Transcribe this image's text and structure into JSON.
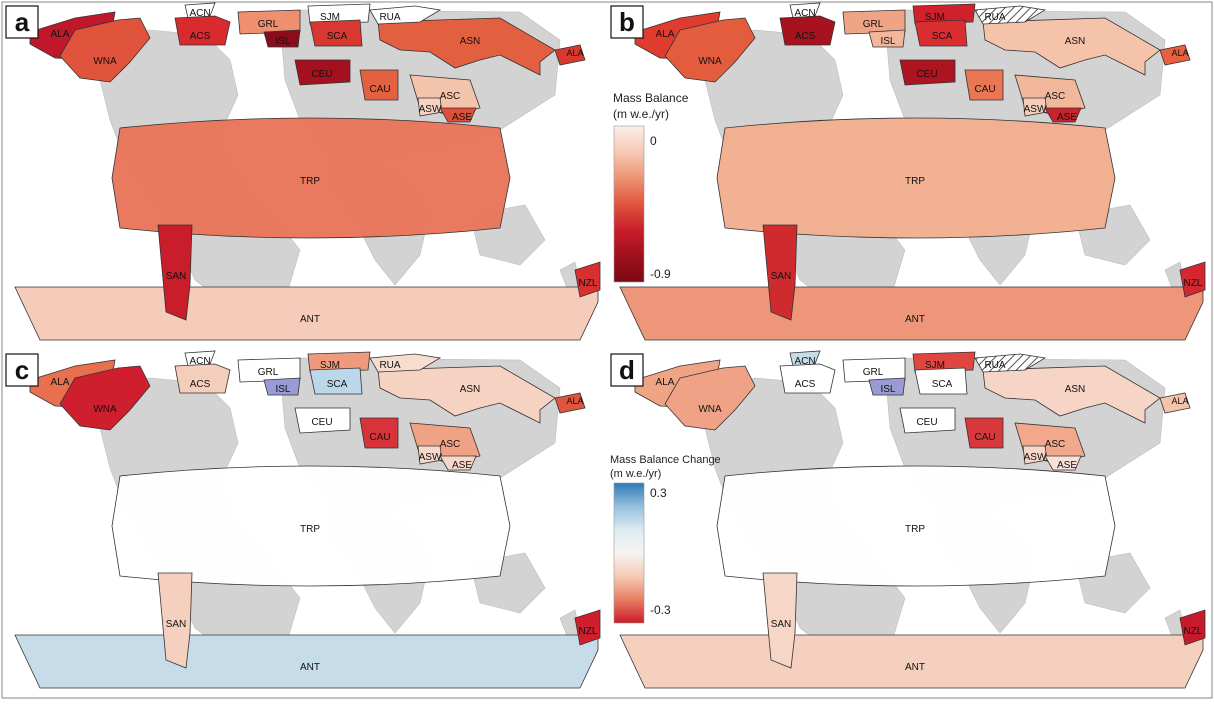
{
  "panels": [
    {
      "letter": "a",
      "regions": {
        "ALA": "#c0182a",
        "ALA_EAST": "#d8392f",
        "ACN": "#ffffff",
        "WNA": "#e0533c",
        "ACS": "#d82a2f",
        "GRL": "#ee9070",
        "ISL": "#8a0d1e",
        "SJM": "#ffffff",
        "SCA": "#d8382f",
        "RUA": "#ffffff",
        "ASN": "#e2603f",
        "CEU": "#a5101f",
        "CAU": "#e36040",
        "ASC": "#f4c3ac",
        "ASW": "#f6d3c3",
        "ASE": "#de4e3a",
        "TRP": "#e8755a",
        "SAN": "#c91d2b",
        "NZL": "#d82f30",
        "ANT": "#f5ccb9"
      }
    },
    {
      "letter": "b",
      "regions": {
        "ALA": "#df3b2f",
        "ALA_EAST": "#e8603f",
        "ACN": "#ffffff",
        "WNA": "#e45c3e",
        "ACS": "#a8121f",
        "GRL": "#f0a486",
        "ISL": "#f3b69b",
        "SJM": "#d0202c",
        "SCA": "#d92d30",
        "RUA": "hatch",
        "ASN": "#f5c3aa",
        "CEU": "#ad1420",
        "CAU": "#ea7654",
        "ASC": "#f2b89c",
        "ASW": "#f6cdb8",
        "ASE": "#c9232b",
        "TRP": "#f3ae91",
        "SAN": "#cf2a2e",
        "NZL": "#d52730",
        "ANT": "#ee967a"
      }
    },
    {
      "letter": "c",
      "regions": {
        "ALA": "#e8704f",
        "ALA_EAST": "#df553c",
        "ACN": "#ffffff",
        "WNA": "#cf1f2e",
        "ACS": "#f5cdbb",
        "GRL": "#ffffff",
        "ISL": "#9a9ad4",
        "SJM": "#ef9a7c",
        "SCA": "#bcd7ea",
        "RUA": "#f6ddd0",
        "ASN": "#f5d2c2",
        "CEU": "#ffffff",
        "CAU": "#d8323a",
        "ASC": "#f0a285",
        "ASW": "#f6d9cc",
        "ASE": "#f6d7c9",
        "TRP": "#ffffff",
        "SAN": "#f6d0bf",
        "NZL": "#cf1f2e",
        "ANT": "#c6dde9"
      }
    },
    {
      "letter": "d",
      "regions": {
        "ALA": "#f0a486",
        "ALA_EAST": "#f4c4ad",
        "ACN": "#c6dde9",
        "WNA": "#efa285",
        "ACS": "#ffffff",
        "GRL": "#ffffff",
        "ISL": "#9a9ad4",
        "SJM": "#e0463f",
        "SCA": "#ffffff",
        "RUA": "hatch",
        "ASN": "#f6d5c6",
        "CEU": "#ffffff",
        "CAU": "#d8383c",
        "ASC": "#f1a88b",
        "ASW": "#f6d7c9",
        "ASE": "#f8e1d6",
        "TRP": "#ffffff",
        "SAN": "#f6d6c6",
        "NZL": "#c81a2a",
        "ANT": "#f6d0bf"
      }
    }
  ],
  "region_labels": [
    "ALA",
    "ACN",
    "WNA",
    "ACS",
    "GRL",
    "ISL",
    "SJM",
    "SCA",
    "RUA",
    "ASN",
    "CEU",
    "CAU",
    "ASC",
    "ASW",
    "ASE",
    "TRP",
    "SAN",
    "NZL",
    "ANT"
  ],
  "colorbar_top": {
    "title_line1": "Mass Balance",
    "title_line2": "(m w.e./yr)",
    "max_label": "0",
    "min_label": "-0.9",
    "stops": [
      "#fbeee8",
      "#f6c9b4",
      "#ee9473",
      "#e0553d",
      "#c81e2b",
      "#a0101d",
      "#7a0a15"
    ]
  },
  "colorbar_bottom": {
    "title_line1": "Mass Balance Change",
    "title_line2": "(m w.e./yr)",
    "max_label": "0.3",
    "min_label": "-0.3",
    "stops": [
      "#2c7bb6",
      "#94c1dc",
      "#dcebf2",
      "#f8f4f2",
      "#f5c9b5",
      "#e77f62",
      "#cc1a2a"
    ]
  },
  "colors": {
    "land": "#d3d3d3",
    "outline": "#333333",
    "background": "#ffffff"
  }
}
